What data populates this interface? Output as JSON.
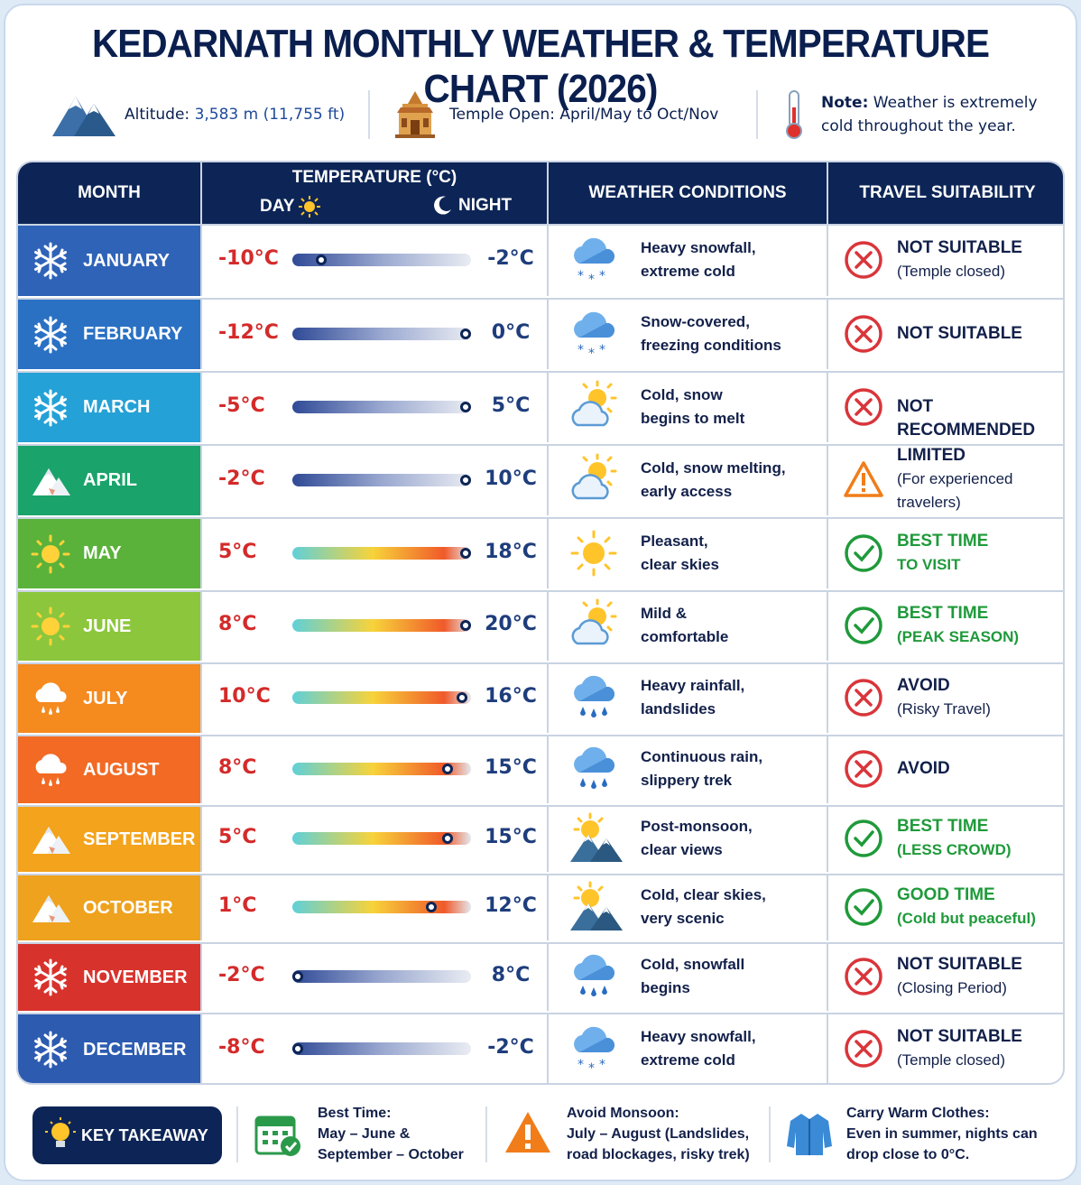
{
  "title": "KEDARNATH MONTHLY WEATHER & TEMPERATURE CHART (2026)",
  "info": {
    "altitude_label": "Altitude:",
    "altitude_value": "3,583 m (11,755 ft)",
    "temple_label": "Temple Open: April/May to Oct/Nov",
    "note_label": "Note:",
    "note_text": "Weather is extremely",
    "note_text2": "cold throughout the year."
  },
  "headers": {
    "month": "MONTH",
    "temperature": "TEMPERATURE (°C)",
    "day": "DAY",
    "night": "NIGHT",
    "weather": "WEATHER CONDITIONS",
    "travel": "TRAVEL SUITABILITY"
  },
  "colors": {
    "header_bg": "#0d2556",
    "day_temp": "#d42a2a",
    "night_temp": "#1e3d7c",
    "good": "#1f9a3a",
    "bad": "#d9353a",
    "warn": "#f07d1a"
  },
  "months": [
    {
      "name": "JANUARY",
      "icon": "snowflake-icon",
      "color": "#2f63b8",
      "day": "-10°C",
      "night": "-2°C",
      "fill": 0.16,
      "bar": "cold",
      "weather_icon": "snow-cloud-icon",
      "w1": "Heavy snowfall,",
      "w2": "extreme cold",
      "status": "bad",
      "s1": "NOT SUITABLE",
      "s2": "(Temple closed)"
    },
    {
      "name": "FEBRUARY",
      "icon": "snowflake-icon",
      "color": "#2a71c4",
      "day": "-12°C",
      "night": "0°C",
      "fill": 0.97,
      "bar": "cold",
      "weather_icon": "snow-cloud-icon",
      "w1": "Snow-covered,",
      "w2": "freezing conditions",
      "status": "bad",
      "s1": "NOT SUITABLE",
      "s2": ""
    },
    {
      "name": "MARCH",
      "icon": "snowflake-icon",
      "color": "#24a1d6",
      "day": "-5°C",
      "night": "5°C",
      "fill": 0.97,
      "bar": "cold",
      "weather_icon": "sun-cloud-icon",
      "w1": "Cold, snow",
      "w2": "begins to melt",
      "status": "bad",
      "s1": "NOT RECOMMENDED",
      "s2": ""
    },
    {
      "name": "APRIL",
      "icon": "mountain-icon",
      "color": "#1aa36a",
      "day": "-2°C",
      "night": "10°C",
      "fill": 0.97,
      "bar": "cold",
      "weather_icon": "sun-cloud-icon",
      "w1": "Cold, snow melting,",
      "w2": "early access",
      "status": "warn",
      "s1": "LIMITED",
      "s2": "(For experienced travelers)"
    },
    {
      "name": "MAY",
      "icon": "sun-icon",
      "color": "#5ab23a",
      "day": "5°C",
      "night": "18°C",
      "fill": 0.97,
      "bar": "warm",
      "weather_icon": "sun-icon",
      "w1": "Pleasant,",
      "w2": "clear skies",
      "status": "good",
      "s1": "BEST TIME",
      "s2": "TO VISIT"
    },
    {
      "name": "JUNE",
      "icon": "sun-icon",
      "color": "#8cc63c",
      "day": "8°C",
      "night": "20°C",
      "fill": 0.97,
      "bar": "warm",
      "weather_icon": "sun-cloud-icon",
      "w1": "Mild &",
      "w2": "comfortable",
      "status": "good",
      "s1": "BEST TIME",
      "s2": "(PEAK SEASON)"
    },
    {
      "name": "JULY",
      "icon": "rain-cloud-icon",
      "color": "#f58a1f",
      "day": "10°C",
      "night": "16°C",
      "fill": 0.95,
      "bar": "warm",
      "weather_icon": "rain-cloud-icon",
      "w1": "Heavy rainfall,",
      "w2": "landslides",
      "status": "bad",
      "s1": "AVOID",
      "s2": "(Risky Travel)"
    },
    {
      "name": "AUGUST",
      "icon": "rain-cloud-icon",
      "color": "#f26a24",
      "day": "8°C",
      "night": "15°C",
      "fill": 0.87,
      "bar": "warm",
      "weather_icon": "rain-cloud-icon",
      "w1": "Continuous rain,",
      "w2": "slippery trek",
      "status": "bad",
      "s1": "AVOID",
      "s2": ""
    },
    {
      "name": "SEPTEMBER",
      "icon": "mountain-icon",
      "color": "#f3a31c",
      "day": "5°C",
      "night": "15°C",
      "fill": 0.87,
      "bar": "warm",
      "weather_icon": "sun-mountain-icon",
      "w1": "Post-monsoon,",
      "w2": "clear views",
      "status": "good",
      "s1": "BEST TIME",
      "s2": "(LESS CROWD)"
    },
    {
      "name": "OCTOBER",
      "icon": "mountain-icon",
      "color": "#eea21e",
      "day": "1°C",
      "night": "12°C",
      "fill": 0.78,
      "bar": "warm",
      "weather_icon": "sun-mountain-icon",
      "w1": "Cold, clear skies,",
      "w2": "very scenic",
      "status": "good",
      "s1": "GOOD TIME",
      "s2": "(Cold but peaceful)"
    },
    {
      "name": "NOVEMBER",
      "icon": "snowflake-icon",
      "color": "#d8322c",
      "day": "-2°C",
      "night": "8°C",
      "fill": 0,
      "bar": "cold",
      "weather_icon": "rain-cloud-icon",
      "w1": "Cold, snowfall",
      "w2": "begins",
      "status": "bad",
      "s1": "NOT SUITABLE",
      "s2": "(Closing Period)"
    },
    {
      "name": "DECEMBER",
      "icon": "snowflake-icon",
      "color": "#2c5bb0",
      "day": "-8°C",
      "night": "-2°C",
      "fill": 0,
      "bar": "cold",
      "weather_icon": "snow-cloud-icon",
      "w1": "Heavy snowfall,",
      "w2": "extreme cold",
      "status": "bad",
      "s1": "NOT SUITABLE",
      "s2": "(Temple closed)"
    }
  ],
  "footer": {
    "key": "KEY TAKEAWAY",
    "best_title": "Best Time:",
    "best_l1": "May – June &",
    "best_l2": "September – October",
    "avoid_title": "Avoid Monsoon:",
    "avoid_l1": "July – August (Landslides,",
    "avoid_l2": "road blockages, risky trek)",
    "warm_title": "Carry Warm Clothes:",
    "warm_l1": "Even in summer, nights can",
    "warm_l2": "drop close to 0°C."
  }
}
